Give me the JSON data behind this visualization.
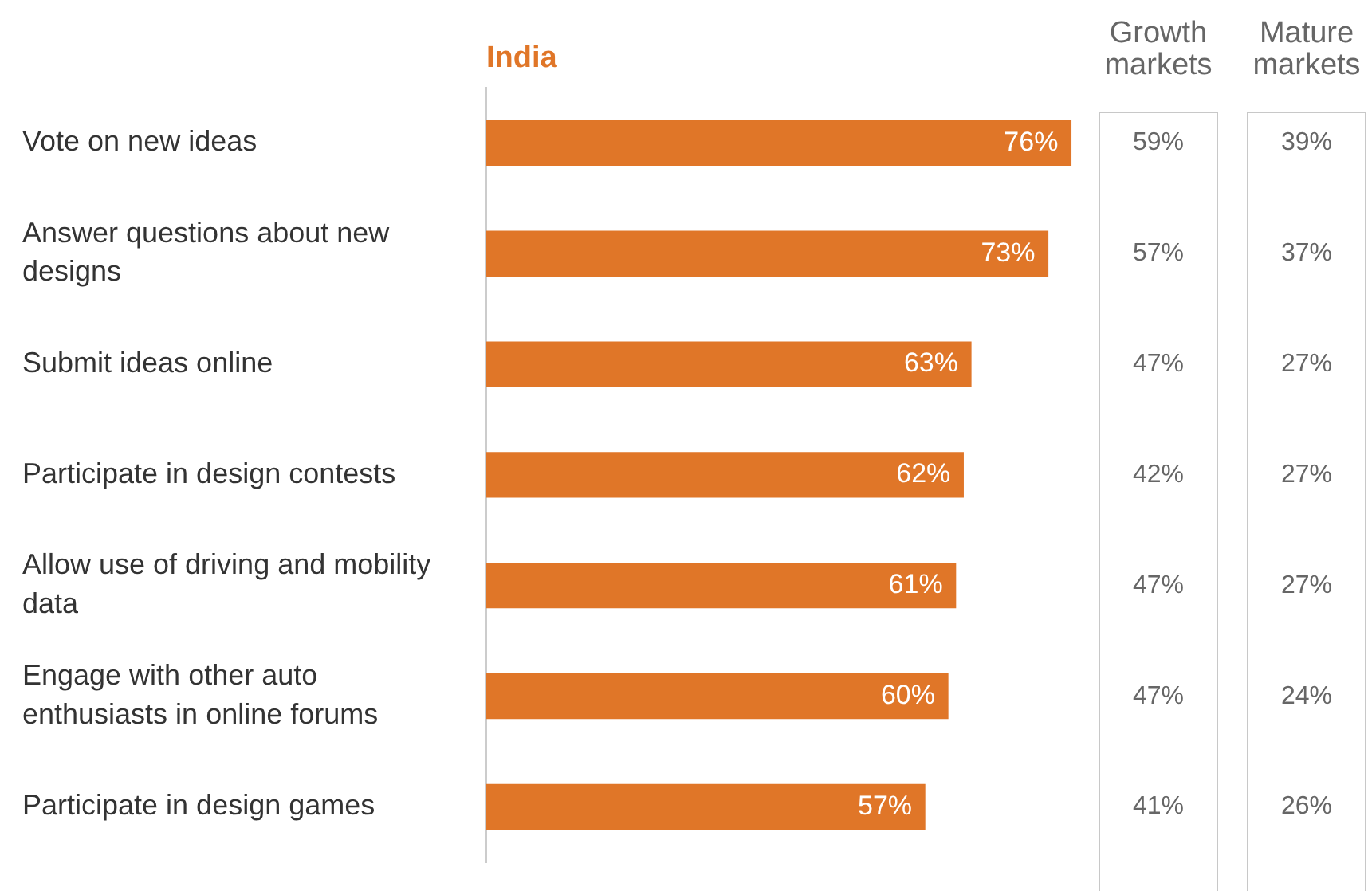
{
  "chart_data": [
    {
      "type": "bar",
      "orientation": "horizontal",
      "categories": [
        "Vote on new ideas",
        "Answer questions about new designs",
        "Submit ideas online",
        "Participate in design contests",
        "Allow use of driving and mobility data",
        "Engage with other auto enthusiasts in online forums",
        "Participate in design games"
      ],
      "series": [
        {
          "name": "India",
          "color": "#e07628",
          "values": [
            76,
            73,
            63,
            62,
            61,
            60,
            57
          ],
          "value_labels": [
            "76%",
            "73%",
            "63%",
            "62%",
            "61%",
            "60%",
            "57%"
          ]
        }
      ],
      "data_labels": true
    },
    {
      "type": "heatmap",
      "categories": [
        "Growth markets",
        "Mature markets"
      ],
      "y_categories": [
        null,
        null,
        null,
        null,
        null,
        null,
        null
      ],
      "cells": [
        [
          59,
          39
        ],
        [
          57,
          37
        ],
        [
          47,
          27
        ],
        [
          42,
          27
        ],
        [
          47,
          27
        ],
        [
          47,
          24
        ],
        [
          41,
          26
        ]
      ],
      "cell_labels": [
        [
          "59%",
          "39%"
        ],
        [
          "57%",
          "37%"
        ],
        [
          "47%",
          "27%"
        ],
        [
          "42%",
          "27%"
        ],
        [
          "47%",
          "27%"
        ],
        [
          "47%",
          "24%"
        ],
        [
          "41%",
          "26%"
        ]
      ],
      "tick_labels": "x"
    }
  ]
}
